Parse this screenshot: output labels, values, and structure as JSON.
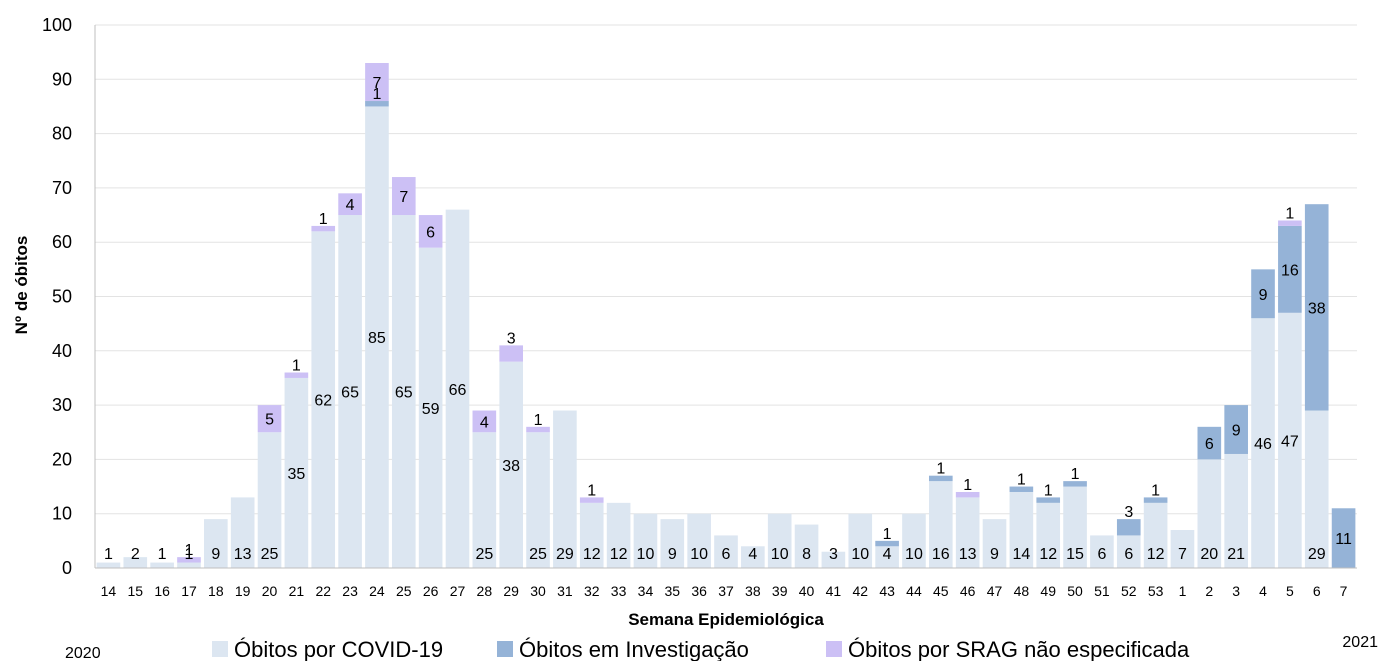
{
  "chart_data": {
    "type": "bar",
    "stacked": true,
    "title": "",
    "xlabel": "Semana Epidemiológica",
    "ylabel": "Nº de óbitos",
    "ylim": [
      0,
      100
    ],
    "yticks": [
      0,
      10,
      20,
      30,
      40,
      50,
      60,
      70,
      80,
      90,
      100
    ],
    "grid": true,
    "legend_position": "bottom",
    "year_labels": {
      "start": "2020",
      "end": "2021"
    },
    "categories": [
      "14",
      "15",
      "16",
      "17",
      "18",
      "19",
      "20",
      "21",
      "22",
      "23",
      "24",
      "25",
      "26",
      "27",
      "28",
      "29",
      "30",
      "31",
      "32",
      "33",
      "34",
      "35",
      "36",
      "37",
      "38",
      "39",
      "40",
      "41",
      "42",
      "43",
      "44",
      "45",
      "46",
      "47",
      "48",
      "49",
      "50",
      "51",
      "52",
      "53",
      "1",
      "2",
      "3",
      "4",
      "5",
      "6",
      "7"
    ],
    "series": [
      {
        "name": "Óbitos por COVID-19",
        "color": "#dce6f1",
        "values": [
          1,
          2,
          1,
          1,
          9,
          13,
          25,
          35,
          62,
          65,
          85,
          65,
          59,
          66,
          25,
          38,
          25,
          29,
          12,
          12,
          10,
          9,
          10,
          6,
          4,
          10,
          8,
          3,
          10,
          4,
          10,
          16,
          13,
          9,
          14,
          12,
          15,
          6,
          6,
          12,
          7,
          20,
          21,
          46,
          47,
          29,
          0
        ]
      },
      {
        "name": "Óbitos em Investigação",
        "color": "#95b3d7",
        "values": [
          0,
          0,
          0,
          0,
          0,
          0,
          0,
          0,
          0,
          0,
          1,
          0,
          0,
          0,
          0,
          0,
          0,
          0,
          0,
          0,
          0,
          0,
          0,
          0,
          0,
          0,
          0,
          0,
          0,
          1,
          0,
          1,
          0,
          0,
          1,
          1,
          1,
          0,
          3,
          1,
          0,
          6,
          9,
          9,
          16,
          38,
          11
        ]
      },
      {
        "name": "Óbitos por SRAG não especificada",
        "color": "#ccc0f5",
        "values": [
          0,
          0,
          0,
          1,
          0,
          0,
          5,
          1,
          1,
          4,
          7,
          7,
          6,
          0,
          4,
          3,
          1,
          0,
          1,
          0,
          0,
          0,
          0,
          0,
          0,
          0,
          0,
          0,
          0,
          0,
          0,
          0,
          1,
          0,
          0,
          0,
          0,
          0,
          0,
          0,
          0,
          0,
          0,
          0,
          1,
          0,
          0
        ]
      }
    ]
  }
}
